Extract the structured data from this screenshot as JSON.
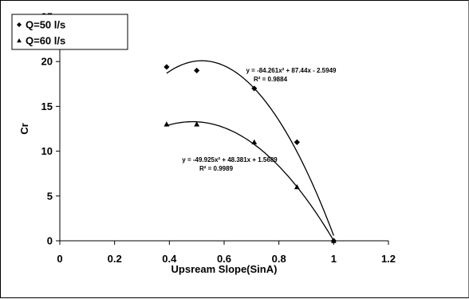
{
  "chart_data": {
    "type": "scatter",
    "xlabel": "Upsream Slope(SinA)",
    "ylabel": "Cr",
    "xlim": [
      0,
      1.2
    ],
    "ylim": [
      0,
      25
    ],
    "xticks": [
      0,
      0.2,
      0.4,
      0.6,
      0.8,
      1,
      1.2
    ],
    "xtick_labels": [
      "0",
      "0.2",
      "0.4",
      "0.6",
      "0.8",
      "1",
      "1.2"
    ],
    "yticks": [
      0,
      5,
      10,
      15,
      20,
      25
    ],
    "ytick_labels": [
      "0",
      "5",
      "10",
      "15",
      "20",
      "25"
    ],
    "grid": false,
    "legend_position": "top-left",
    "series": [
      {
        "name": "Q=50 l/s",
        "marker": "diamond",
        "color": "#000000",
        "x": [
          0.39,
          0.5,
          0.71,
          0.866,
          1.0
        ],
        "y": [
          19.4,
          19.0,
          17.0,
          11.0,
          0.0
        ],
        "trendline": {
          "a": -84.261,
          "b": 87.44,
          "c": -2.5949,
          "x_range": [
            0.39,
            1.0
          ]
        },
        "equation": "y = -84.261x² + 87.44x - 2.5949",
        "r2": "R² = 0.9884"
      },
      {
        "name": "Q=60 l/s",
        "marker": "triangle",
        "color": "#000000",
        "x": [
          0.39,
          0.5,
          0.71,
          0.866,
          1.0
        ],
        "y": [
          13.0,
          13.0,
          11.0,
          6.0,
          0.0
        ],
        "trendline": {
          "a": -49.925,
          "b": 48.381,
          "c": 1.5689,
          "x_range": [
            0.39,
            1.0
          ]
        },
        "equation": "y = -49.925x² + 48.381x + 1.5689",
        "r2": "R² = 0.9989"
      }
    ]
  }
}
